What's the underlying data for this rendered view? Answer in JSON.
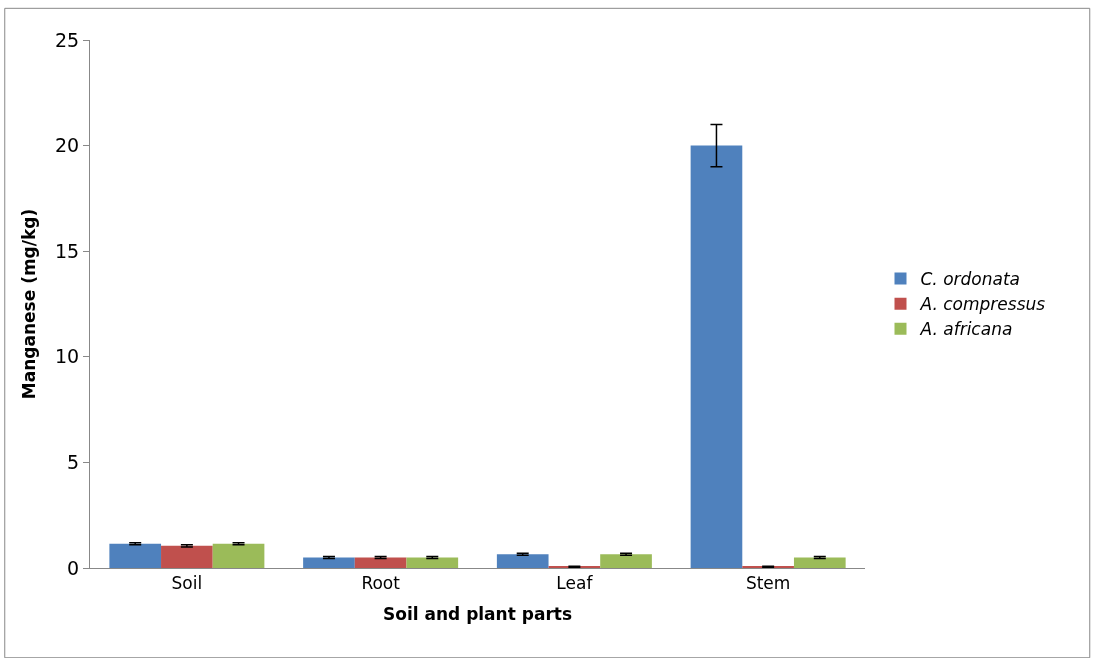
{
  "chart_data": {
    "type": "bar",
    "xlabel": "Soil and plant parts",
    "ylabel": "Manganese (mg/kg)",
    "categories": [
      "Soil",
      "Root",
      "Leaf",
      "Stem"
    ],
    "series": [
      {
        "name": "C. ordonata",
        "color": "#4f81bd",
        "values": [
          1.15,
          0.5,
          0.65,
          20
        ],
        "errors": [
          0.05,
          0.05,
          0.05,
          1
        ]
      },
      {
        "name": "A. compressus",
        "color": "#c0504d",
        "values": [
          1.05,
          0.5,
          0.05,
          0.05
        ],
        "errors": [
          0.05,
          0.05,
          0.03,
          0.03
        ]
      },
      {
        "name": "A. africana",
        "color": "#9bbb59",
        "values": [
          1.15,
          0.5,
          0.65,
          0.5
        ],
        "errors": [
          0.05,
          0.05,
          0.05,
          0.05
        ]
      }
    ],
    "ylim": [
      0,
      25
    ],
    "yticks": [
      0,
      5,
      10,
      15,
      20,
      25
    ],
    "legend": "right"
  }
}
